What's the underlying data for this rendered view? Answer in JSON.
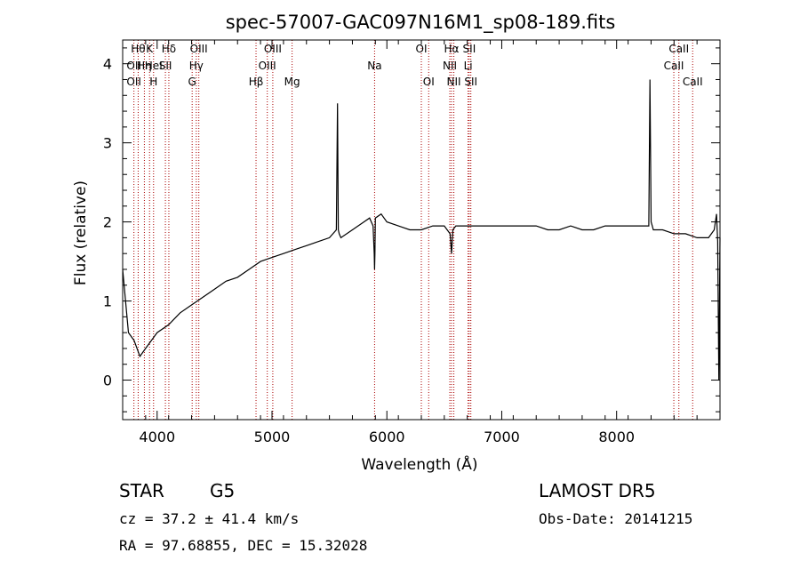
{
  "chart_data": {
    "type": "line",
    "title": "spec-57007-GAC097N16M1_sp08-189.fits",
    "xlabel": "Wavelength (Å)",
    "ylabel": "Flux (relative)",
    "xlim": [
      3700,
      8900
    ],
    "ylim": [
      -0.5,
      4.3
    ],
    "x_ticks": [
      4000,
      5000,
      6000,
      7000,
      8000
    ],
    "x_tick_labels": [
      "4000",
      "5000",
      "6000",
      "7000",
      "8000"
    ],
    "y_ticks": [
      0,
      1,
      2,
      3,
      4
    ],
    "y_tick_labels": [
      "0",
      "1",
      "2",
      "3",
      "4"
    ],
    "grid": false,
    "series": [
      {
        "color": "#000000",
        "x": [
          3700,
          3750,
          3800,
          3850,
          3900,
          3950,
          4000,
          4100,
          4200,
          4300,
          4400,
          4500,
          4600,
          4700,
          4800,
          4900,
          5000,
          5100,
          5200,
          5300,
          5400,
          5500,
          5560,
          5570,
          5577,
          5585,
          5600,
          5700,
          5800,
          5850,
          5880,
          5890,
          5893,
          5896,
          5900,
          5950,
          6000,
          6100,
          6200,
          6300,
          6400,
          6500,
          6550,
          6563,
          6575,
          6600,
          6700,
          6800,
          6900,
          7000,
          7100,
          7200,
          7300,
          7400,
          7500,
          7600,
          7700,
          7800,
          7900,
          8000,
          8100,
          8200,
          8280,
          8290,
          8300,
          8310,
          8320,
          8400,
          8500,
          8600,
          8700,
          8800,
          8850,
          8870,
          8880,
          8890,
          8900
        ],
        "y": [
          1.4,
          0.6,
          0.5,
          0.3,
          0.4,
          0.5,
          0.6,
          0.7,
          0.85,
          0.95,
          1.05,
          1.15,
          1.25,
          1.3,
          1.4,
          1.5,
          1.55,
          1.6,
          1.65,
          1.7,
          1.75,
          1.8,
          1.9,
          3.5,
          1.9,
          1.85,
          1.8,
          1.9,
          2.0,
          2.05,
          1.95,
          1.6,
          1.4,
          1.6,
          2.05,
          2.1,
          2.0,
          1.95,
          1.9,
          1.9,
          1.95,
          1.95,
          1.85,
          1.6,
          1.9,
          1.95,
          1.95,
          1.95,
          1.95,
          1.95,
          1.95,
          1.95,
          1.95,
          1.9,
          1.9,
          1.95,
          1.9,
          1.9,
          1.95,
          1.95,
          1.95,
          1.95,
          1.95,
          3.8,
          2.0,
          1.95,
          1.9,
          1.9,
          1.85,
          1.85,
          1.8,
          1.8,
          1.9,
          2.1,
          1.75,
          0.0,
          1.8
        ]
      }
    ],
    "lines": [
      {
        "x": 3798,
        "labels": [
          "",
          "OII",
          "OII"
        ]
      },
      {
        "x": 3835,
        "labels": [
          "Hθ",
          "",
          ""
        ]
      },
      {
        "x": 3889,
        "labels": [
          "",
          "Hη",
          ""
        ]
      },
      {
        "x": 3934,
        "labels": [
          "K",
          "",
          ""
        ]
      },
      {
        "x": 3969,
        "labels": [
          "",
          "HeI",
          "H"
        ]
      },
      {
        "x": 4072,
        "labels": [
          "",
          "SII",
          ""
        ]
      },
      {
        "x": 4102,
        "labels": [
          "Hδ",
          "",
          ""
        ]
      },
      {
        "x": 4305,
        "labels": [
          "",
          "",
          "G"
        ]
      },
      {
        "x": 4341,
        "labels": [
          "",
          "Hγ",
          ""
        ]
      },
      {
        "x": 4363,
        "labels": [
          "OIII",
          "",
          ""
        ]
      },
      {
        "x": 4861,
        "labels": [
          "",
          "",
          "Hβ"
        ]
      },
      {
        "x": 4959,
        "labels": [
          "",
          "OIII",
          ""
        ]
      },
      {
        "x": 5007,
        "labels": [
          "OIII",
          "",
          ""
        ]
      },
      {
        "x": 5175,
        "labels": [
          "",
          "",
          "Mg"
        ]
      },
      {
        "x": 5893,
        "labels": [
          "",
          "Na",
          ""
        ]
      },
      {
        "x": 6300,
        "labels": [
          "OI",
          "",
          ""
        ]
      },
      {
        "x": 6364,
        "labels": [
          "",
          "",
          "OI"
        ]
      },
      {
        "x": 6548,
        "labels": [
          "",
          "NII",
          ""
        ]
      },
      {
        "x": 6563,
        "labels": [
          "Hα",
          "",
          ""
        ]
      },
      {
        "x": 6583,
        "labels": [
          "",
          "",
          "NII"
        ]
      },
      {
        "x": 6707,
        "labels": [
          "",
          "Li",
          ""
        ]
      },
      {
        "x": 6717,
        "labels": [
          "SII",
          "",
          ""
        ]
      },
      {
        "x": 6731,
        "labels": [
          "",
          "",
          "SII"
        ]
      },
      {
        "x": 8498,
        "labels": [
          "",
          "CaII",
          ""
        ]
      },
      {
        "x": 8542,
        "labels": [
          "CaII",
          "",
          ""
        ]
      },
      {
        "x": 8662,
        "labels": [
          "",
          "",
          "CaII"
        ]
      }
    ]
  },
  "info": {
    "class": "STAR",
    "subclass": "G5",
    "survey": "LAMOST  DR5",
    "cz": "cz = 37.2 ± 41.4 km/s",
    "obs_date": "Obs-Date: 20141215",
    "radec": "RA =  97.68855, DEC =  15.32028"
  },
  "colors": {
    "line": "#000000",
    "marker": "#aa0000",
    "frame": "#000000",
    "background": "#ffffff"
  }
}
